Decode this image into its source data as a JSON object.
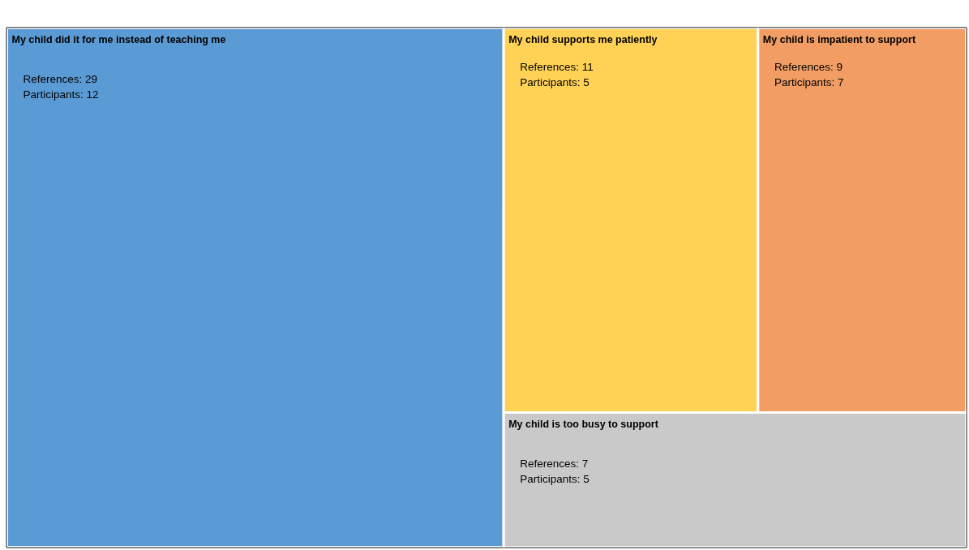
{
  "chart_data": {
    "type": "other",
    "categories": [
      "My child did it for me instead of teaching me",
      "My child supports me patiently",
      "My child is impatient to support",
      "My child is too busy to support"
    ],
    "series": [
      {
        "colors": [
          "#5b9bd5",
          "#ffd155",
          "#f19d64",
          "#c9c9c9"
        ],
        "values": [
          29,
          11,
          9,
          7
        ],
        "value_labels": [
          "References: 29",
          "References: 11",
          "References: 9",
          "References: 7"
        ]
      }
    ],
    "annotations": [
      "Participants: 12",
      "Participants: 5",
      "Participants: 7",
      "Participants: 5"
    ]
  }
}
